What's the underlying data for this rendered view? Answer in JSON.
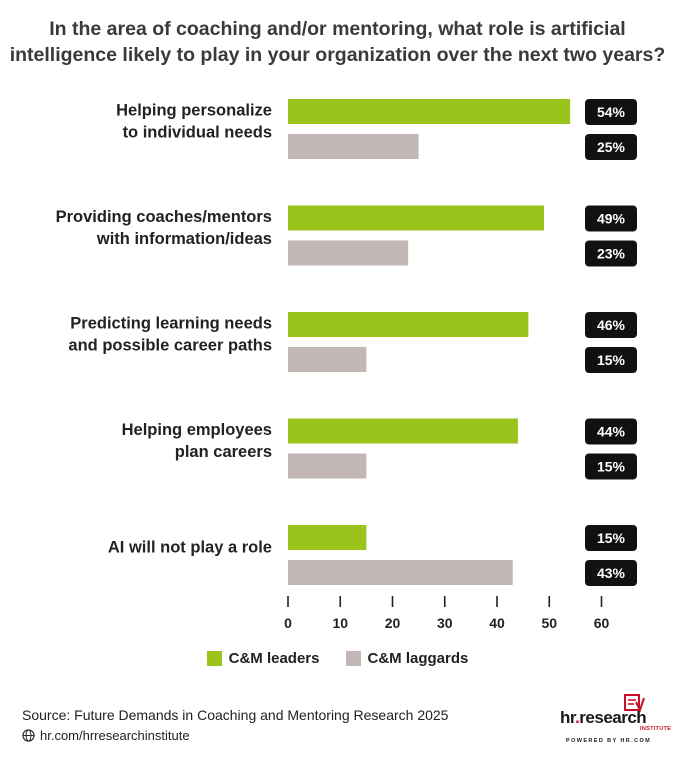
{
  "title_lines": [
    "In the area of coaching and/or mentoring, what role is artificial",
    "intelligence likely to play in your organization over the next two years?"
  ],
  "chart_data": {
    "type": "bar",
    "orientation": "horizontal",
    "categories": [
      [
        "Helping personalize",
        "to individual needs"
      ],
      [
        "Providing coaches/mentors",
        "with information/ideas"
      ],
      [
        "Predicting learning needs",
        "and possible career paths"
      ],
      [
        "Helping employees",
        "plan careers"
      ],
      [
        "AI will not play a role"
      ]
    ],
    "series": [
      {
        "name": "C&M leaders",
        "color": "#9ac31c",
        "values": [
          54,
          49,
          46,
          44,
          15
        ],
        "labels": [
          "54%",
          "49%",
          "46%",
          "44%",
          "15%"
        ]
      },
      {
        "name": "C&M laggards",
        "color": "#c2b7b4",
        "values": [
          25,
          23,
          15,
          15,
          43
        ],
        "labels": [
          "25%",
          "23%",
          "15%",
          "15%",
          "43%"
        ]
      }
    ],
    "xlim": [
      0,
      60
    ],
    "xticks": [
      0,
      10,
      20,
      30,
      40,
      50,
      60
    ],
    "grid": false,
    "legend_position": "bottom",
    "badge_color": "#111111"
  },
  "footer": {
    "source": "Source:  Future Demands in Coaching and Mentoring Research 2025",
    "link": "hr.com/hrresearchinstitute",
    "globe_icon": "globe-icon"
  },
  "brand": {
    "main_left": "hr",
    "main_dot": ".",
    "main_right": "research",
    "sub": "INSTITUTE",
    "powered": "POWERED BY HR.COM",
    "logo_icon": "certificate-logo-icon"
  }
}
